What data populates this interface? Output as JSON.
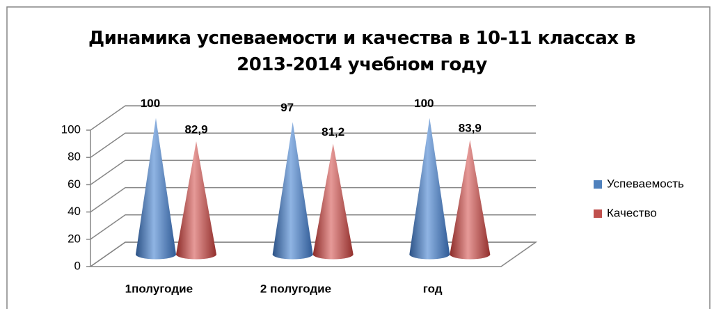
{
  "chart_data": {
    "type": "cone3d",
    "title": "Динамика успеваемости и качества в 10-11 классах в 2013-2014 учебном году",
    "categories": [
      "1полугодие",
      "2 полугодие",
      "год"
    ],
    "series": [
      {
        "name": "Успеваемость",
        "color": "#4f81bd",
        "values": [
          100,
          97,
          100
        ],
        "value_labels": [
          "100",
          "97",
          "100"
        ]
      },
      {
        "name": "Качество",
        "color": "#c0504d",
        "values": [
          82.9,
          81.2,
          83.9
        ],
        "value_labels": [
          "82,9",
          "81,2",
          "83,9"
        ]
      }
    ],
    "ylim": [
      0,
      100
    ],
    "yticks": [
      0,
      20,
      40,
      60,
      80,
      100
    ],
    "grid": true,
    "legend": "right"
  }
}
